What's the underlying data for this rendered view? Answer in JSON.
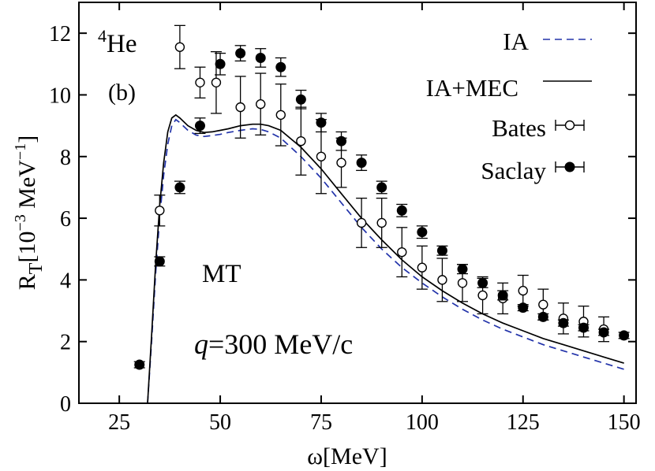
{
  "chart_data": {
    "type": "scatter",
    "xlabel": "ω[MeV]",
    "ylabel": "R",
    "ylabel_sub": "T",
    "ylabel_unit": "[10",
    "ylabel_exp1": "−3",
    "ylabel_unit2": " MeV",
    "ylabel_exp2": "−1",
    "ylabel_close": "]",
    "xlim": [
      15,
      153
    ],
    "ylim": [
      0,
      13
    ],
    "xticks": [
      25,
      50,
      75,
      100,
      125,
      150
    ],
    "yticks": [
      0,
      2,
      4,
      6,
      8,
      10,
      12
    ],
    "legend_position": "top-right",
    "annotations": {
      "nucleus_mass": "4",
      "nucleus": "He",
      "panel": "(b)",
      "model": "MT",
      "q_symbol": "q",
      "q_value": "=300 MeV/c"
    },
    "series": [
      {
        "name": "IA",
        "kind": "line",
        "style": "dashed",
        "color": "#2233aa",
        "x": [
          32,
          33,
          34,
          35,
          36,
          37,
          38,
          39,
          40,
          42,
          44,
          46,
          48,
          50,
          52,
          55,
          58,
          60,
          62,
          65,
          70,
          75,
          80,
          85,
          90,
          95,
          100,
          105,
          110,
          115,
          120,
          125,
          130,
          135,
          140,
          145,
          150
        ],
        "y": [
          0,
          2.0,
          4.2,
          6.0,
          7.4,
          8.4,
          9.0,
          9.2,
          9.1,
          8.85,
          8.7,
          8.65,
          8.68,
          8.72,
          8.78,
          8.85,
          8.9,
          8.88,
          8.8,
          8.6,
          8.0,
          7.3,
          6.5,
          5.7,
          5.0,
          4.4,
          3.9,
          3.45,
          3.05,
          2.7,
          2.4,
          2.15,
          1.9,
          1.7,
          1.5,
          1.3,
          1.1
        ]
      },
      {
        "name": "IA+MEC",
        "kind": "line",
        "style": "solid",
        "color": "#000000",
        "x": [
          32,
          33,
          34,
          35,
          36,
          37,
          38,
          39,
          40,
          42,
          44,
          46,
          48,
          50,
          52,
          55,
          58,
          60,
          62,
          65,
          70,
          75,
          80,
          85,
          90,
          95,
          100,
          105,
          110,
          115,
          120,
          125,
          130,
          135,
          140,
          145,
          150
        ],
        "y": [
          0,
          2.2,
          4.5,
          6.4,
          7.8,
          8.8,
          9.25,
          9.35,
          9.25,
          9.0,
          8.85,
          8.78,
          8.8,
          8.85,
          8.9,
          9.0,
          9.05,
          9.05,
          9.0,
          8.85,
          8.3,
          7.6,
          6.8,
          6.0,
          5.3,
          4.65,
          4.1,
          3.65,
          3.25,
          2.9,
          2.6,
          2.35,
          2.1,
          1.9,
          1.7,
          1.5,
          1.3
        ]
      },
      {
        "name": "Bates",
        "kind": "points",
        "marker": "open-circle",
        "x": [
          35,
          40,
          45,
          49,
          55,
          60,
          65,
          70,
          75,
          80,
          85,
          90,
          95,
          100,
          105,
          110,
          115,
          120,
          125,
          130,
          135,
          140,
          145
        ],
        "y": [
          6.25,
          11.55,
          10.4,
          10.4,
          9.6,
          9.7,
          9.35,
          8.5,
          8.0,
          7.8,
          5.85,
          5.85,
          4.9,
          4.4,
          4.0,
          3.9,
          3.5,
          3.4,
          3.65,
          3.2,
          2.75,
          2.65,
          2.4
        ],
        "err": [
          0.5,
          0.7,
          0.5,
          1.0,
          1.0,
          1.0,
          1.0,
          1.1,
          1.2,
          0.8,
          0.8,
          0.8,
          0.8,
          0.7,
          0.7,
          0.6,
          0.6,
          0.5,
          0.5,
          0.5,
          0.5,
          0.5,
          0.4
        ]
      },
      {
        "name": "Saclay",
        "kind": "points",
        "marker": "filled-circle",
        "x": [
          30,
          35,
          40,
          45,
          50,
          55,
          60,
          65,
          70,
          75,
          80,
          85,
          90,
          95,
          100,
          105,
          110,
          115,
          120,
          125,
          130,
          135,
          140,
          145,
          150
        ],
        "y": [
          1.25,
          4.6,
          7.0,
          9.0,
          11.0,
          11.35,
          11.2,
          10.9,
          9.85,
          9.1,
          8.5,
          7.8,
          7.0,
          6.25,
          5.55,
          4.95,
          4.35,
          3.9,
          3.5,
          3.1,
          2.8,
          2.6,
          2.45,
          2.3,
          2.2
        ],
        "err": [
          0.1,
          0.15,
          0.2,
          0.25,
          0.35,
          0.25,
          0.3,
          0.3,
          0.3,
          0.3,
          0.3,
          0.25,
          0.2,
          0.2,
          0.2,
          0.15,
          0.15,
          0.15,
          0.15,
          0.1,
          0.1,
          0.1,
          0.1,
          0.1,
          0.1
        ]
      }
    ]
  }
}
